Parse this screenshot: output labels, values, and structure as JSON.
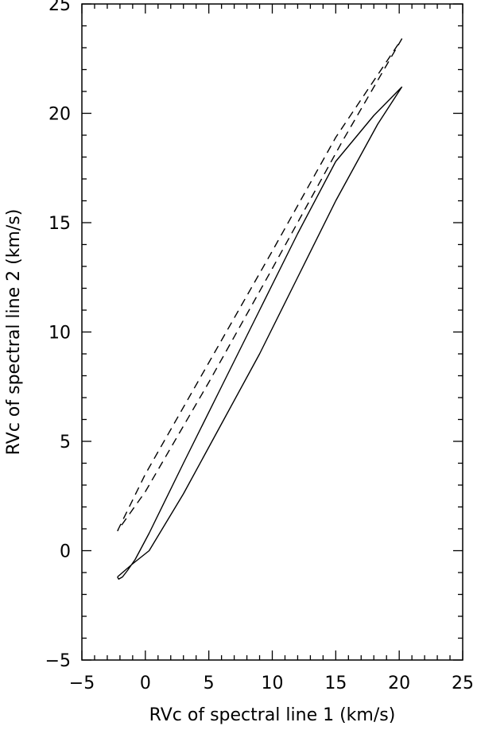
{
  "chart_data": {
    "type": "line",
    "xlabel": "RVc of spectral line 1 (km/s)",
    "ylabel": "RVc of spectral line 2 (km/s)",
    "xlim": [
      -5,
      25
    ],
    "ylim": [
      -5,
      25
    ],
    "xticks": [
      -5,
      0,
      5,
      10,
      15,
      20,
      25
    ],
    "yticks": [
      -5,
      0,
      5,
      10,
      15,
      20,
      25
    ],
    "xtick_labels": [
      "−5",
      "0",
      "5",
      "10",
      "15",
      "20",
      "25"
    ],
    "ytick_labels": [
      "−5",
      "0",
      "5",
      "10",
      "15",
      "20",
      "25"
    ],
    "grid": false,
    "series": [
      {
        "style": "solid",
        "color": "#000000",
        "x": [
          -2.2,
          -2.1,
          -1.8,
          -1.4,
          -0.8,
          0.3,
          3.0,
          6.0,
          9.0,
          12.0,
          15.0,
          18.0,
          20.2,
          18.3,
          15.0,
          12.0,
          9.0,
          6.0,
          3.0,
          0.3,
          -1.0,
          -1.8,
          -2.2
        ],
        "y": [
          -1.2,
          -1.3,
          -1.2,
          -0.9,
          -0.4,
          0.8,
          4.0,
          7.5,
          11.0,
          14.5,
          17.8,
          19.9,
          21.2,
          19.5,
          16.0,
          12.5,
          9.0,
          5.8,
          2.6,
          0.0,
          -0.6,
          -1.0,
          -1.2
        ]
      },
      {
        "style": "dashed",
        "color": "#000000",
        "x": [
          -2.2,
          0.0,
          5.0,
          10.0,
          15.0,
          20.2,
          15.5,
          10.0,
          5.0,
          0.0,
          -2.2
        ],
        "y": [
          0.9,
          3.5,
          8.6,
          13.7,
          18.9,
          23.4,
          18.7,
          12.9,
          7.7,
          2.7,
          0.9
        ]
      }
    ]
  }
}
